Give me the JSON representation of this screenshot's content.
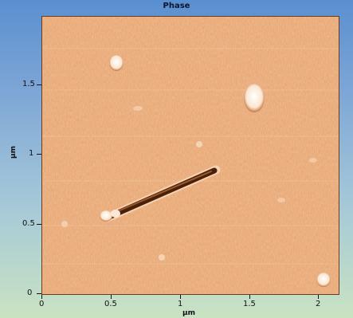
{
  "figure": {
    "title": "Phase",
    "x_axis": {
      "label": "µm",
      "ticks": [
        "0",
        "0.5",
        "1",
        "1.5",
        "2"
      ],
      "range": [
        0,
        2.1
      ]
    },
    "y_axis": {
      "label": "µm",
      "ticks": [
        "0",
        "0.5",
        "1",
        "1.5"
      ],
      "range": [
        0,
        2.0
      ]
    },
    "colors": {
      "image_base": "#e6a069",
      "image_light": "#f7d2b0",
      "image_dark": "#5a2a10",
      "frame_top": "#5a8fd0",
      "frame_bottom": "#c9e3c2"
    }
  }
}
